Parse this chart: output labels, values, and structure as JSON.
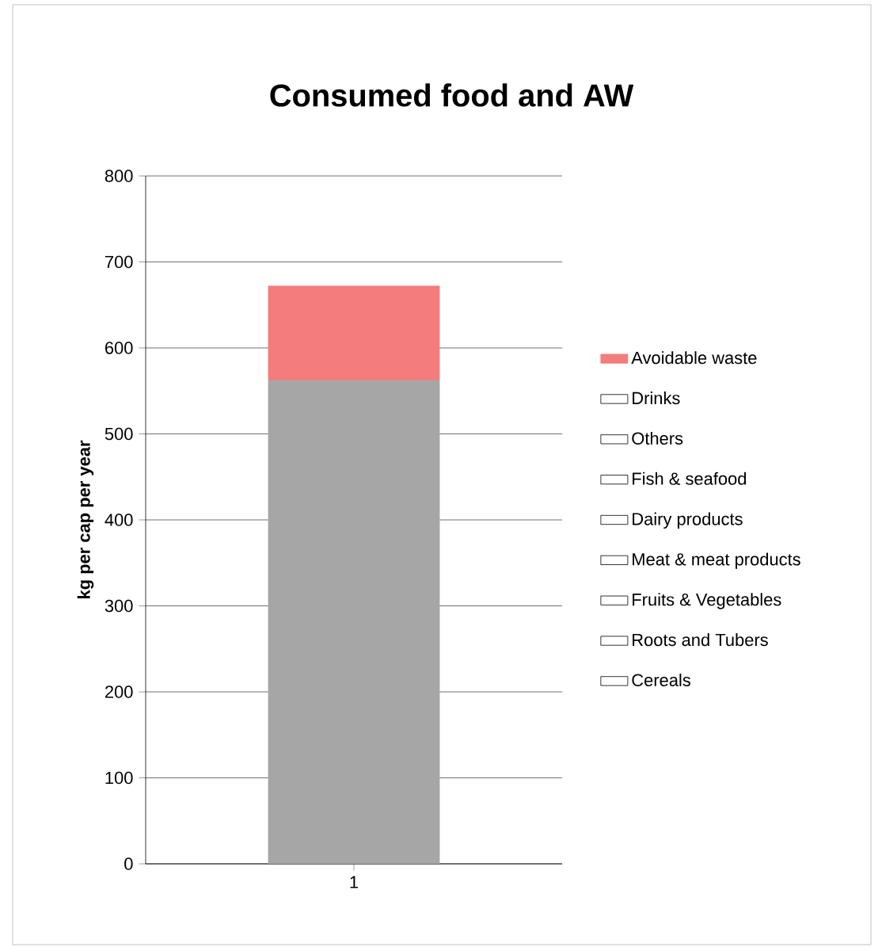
{
  "chart_data": {
    "type": "bar",
    "stacked": true,
    "title": "Consumed food and AW",
    "ylabel": "kg per cap per year",
    "categories": [
      "1"
    ],
    "series": [
      {
        "color": "#a6a6a6",
        "values": [
          562
        ]
      },
      {
        "name": "Cereals",
        "values": [
          null
        ]
      },
      {
        "name": "Roots and Tubers",
        "values": [
          null
        ]
      },
      {
        "name": "Fruits & Vegetables",
        "values": [
          null
        ]
      },
      {
        "name": "Meat & meat products",
        "values": [
          null
        ]
      },
      {
        "name": "Dairy products",
        "values": [
          null
        ]
      },
      {
        "name": "Fish & seafood",
        "values": [
          null
        ]
      },
      {
        "name": "Others",
        "values": [
          null
        ]
      },
      {
        "name": "Drinks",
        "values": [
          null
        ]
      },
      {
        "name": "Avoidable waste",
        "color": "#f47c7c",
        "values": [
          110
        ]
      }
    ],
    "ylim": [
      0,
      800
    ],
    "yticks": [
      0,
      100,
      200,
      300,
      400,
      500,
      600,
      700,
      800
    ],
    "grid": "y",
    "legend": "right"
  }
}
